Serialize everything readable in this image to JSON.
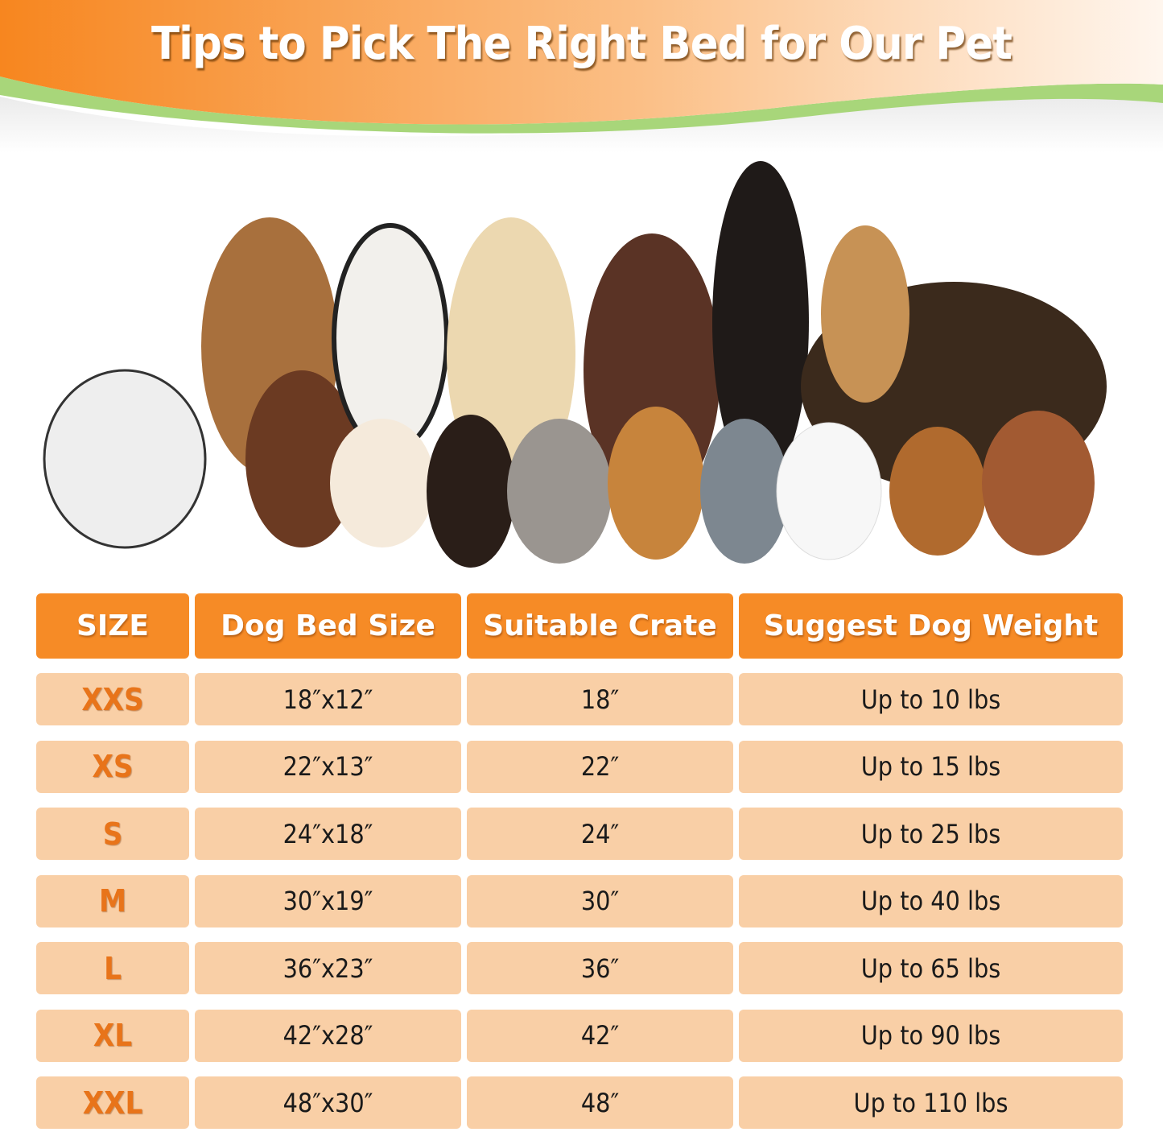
{
  "header": {
    "title": "Tips to Pick The Right Bed for Our Pet"
  },
  "colors": {
    "header_orange": "#f68b26",
    "row_peach": "#f9cfa6",
    "size_text": "#e8741a",
    "wave_green": "#a8d67a"
  },
  "photo": {
    "subject": "group-of-dogs-and-cat"
  },
  "table": {
    "columns": [
      "SIZE",
      "Dog Bed Size",
      "Suitable Crate",
      "Suggest Dog Weight"
    ],
    "rows": [
      [
        "XXS",
        "18″x12″",
        "18″",
        "Up to 10 lbs"
      ],
      [
        "XS",
        "22″x13″",
        "22″",
        "Up to 15 lbs"
      ],
      [
        "S",
        "24″x18″",
        "24″",
        "Up to 25 lbs"
      ],
      [
        "M",
        "30″x19″",
        "30″",
        "Up to 40 lbs"
      ],
      [
        "L",
        "36″x23″",
        "36″",
        "Up to 65 lbs"
      ],
      [
        "XL",
        "42″x28″",
        "42″",
        "Up to 90 lbs"
      ],
      [
        "XXL",
        "48″x30″",
        "48″",
        "Up to 110 lbs"
      ]
    ]
  }
}
